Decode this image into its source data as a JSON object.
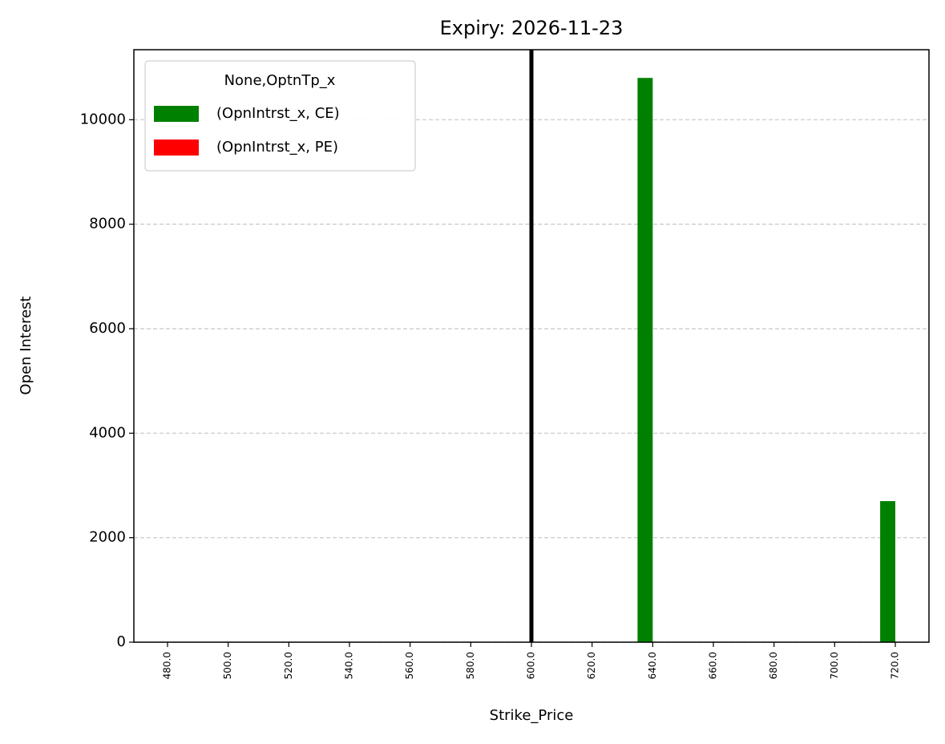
{
  "chart_data": {
    "type": "bar",
    "title": "Expiry: 2026-11-23",
    "x_label": "Strike_Price",
    "y_label": "Open Interest",
    "categories": [
      "480.0",
      "500.0",
      "520.0",
      "540.0",
      "560.0",
      "580.0",
      "600.0",
      "620.0",
      "640.0",
      "660.0",
      "680.0",
      "700.0",
      "720.0"
    ],
    "legend_title": "None,OptnTp_x",
    "series": [
      {
        "name": "(OpnIntrst_x, CE)",
        "color": "#008000",
        "values": [
          0,
          0,
          0,
          0,
          0,
          0,
          0,
          0,
          10800,
          0,
          0,
          0,
          2700
        ]
      },
      {
        "name": "(OpnIntrst_x, PE)",
        "color": "#ff0000",
        "values": [
          0,
          0,
          0,
          0,
          0,
          0,
          0,
          0,
          0,
          0,
          0,
          0,
          0
        ]
      }
    ],
    "vline_at": "600.0",
    "vline_color": "#000000",
    "ylim": [
      0,
      11340
    ],
    "yticks": [
      0,
      2000,
      4000,
      6000,
      8000,
      10000
    ],
    "grid": true,
    "legend": "upper left"
  }
}
